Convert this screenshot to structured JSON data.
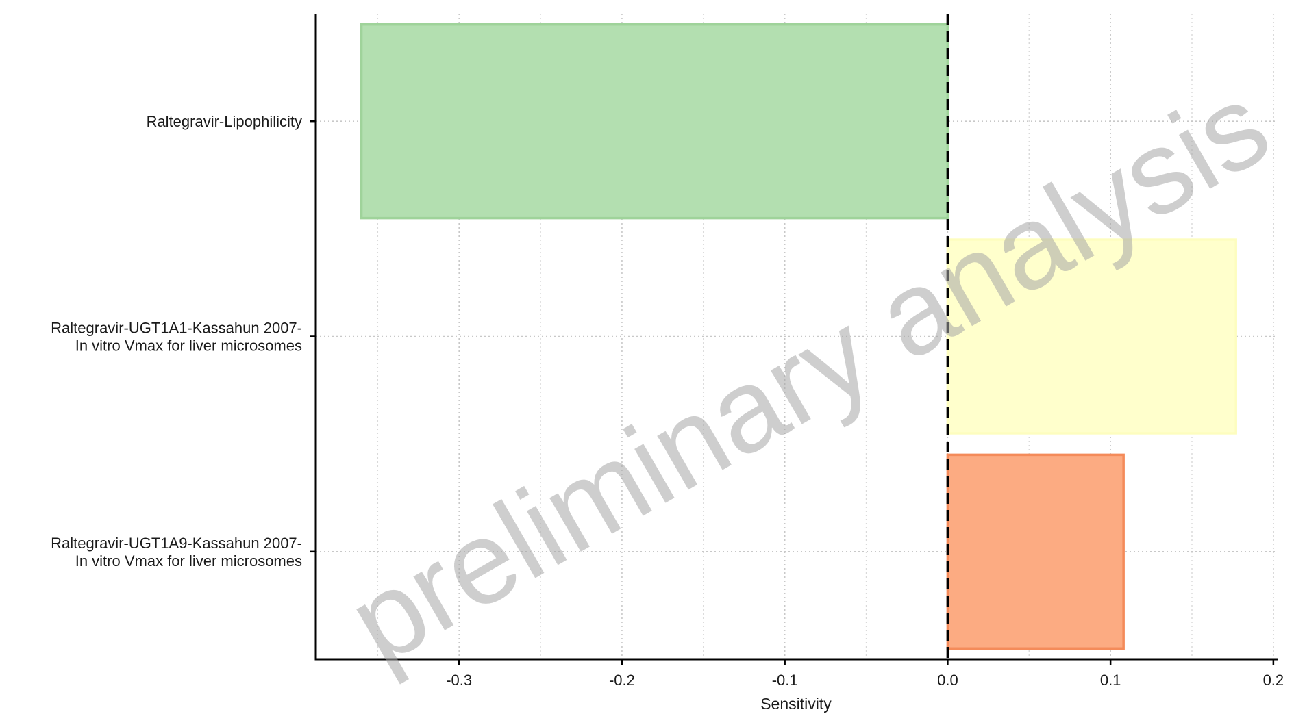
{
  "chart_data": {
    "type": "bar",
    "orientation": "horizontal",
    "categories": [
      [
        "Raltegravir-Lipophilicity"
      ],
      [
        "Raltegravir-UGT1A1-Kassahun 2007-",
        "In vitro Vmax for liver microsomes"
      ],
      [
        "Raltegravir-UGT1A9-Kassahun 2007-",
        "In vitro Vmax for liver microsomes"
      ]
    ],
    "values": [
      -0.36,
      0.177,
      0.108
    ],
    "bar_fill_colors": [
      "#b3dfb0",
      "#ffffcc",
      "#fcab82"
    ],
    "bar_edge_colors": [
      "#9fd39a",
      "#fdfdbf",
      "#f48b5a"
    ],
    "xlabel": "Sensitivity",
    "ylabel": "",
    "xlim": [
      -0.388,
      0.203
    ],
    "xticks": [
      -0.3,
      -0.2,
      -0.1,
      0.0,
      0.1,
      0.2
    ],
    "xtick_labels": [
      "-0.3",
      "-0.2",
      "-0.1",
      "0.0",
      "0.1",
      "0.2"
    ],
    "minor_grid_x": [
      -0.35,
      -0.25,
      -0.15,
      -0.05,
      0.05,
      0.15
    ],
    "reference_line": {
      "x": 0.0,
      "style": "dashed",
      "color": "#000000"
    },
    "grid": true,
    "grid_style": "dotted",
    "watermark": "preliminary analysis",
    "watermark_color": "#a6a6a6"
  }
}
